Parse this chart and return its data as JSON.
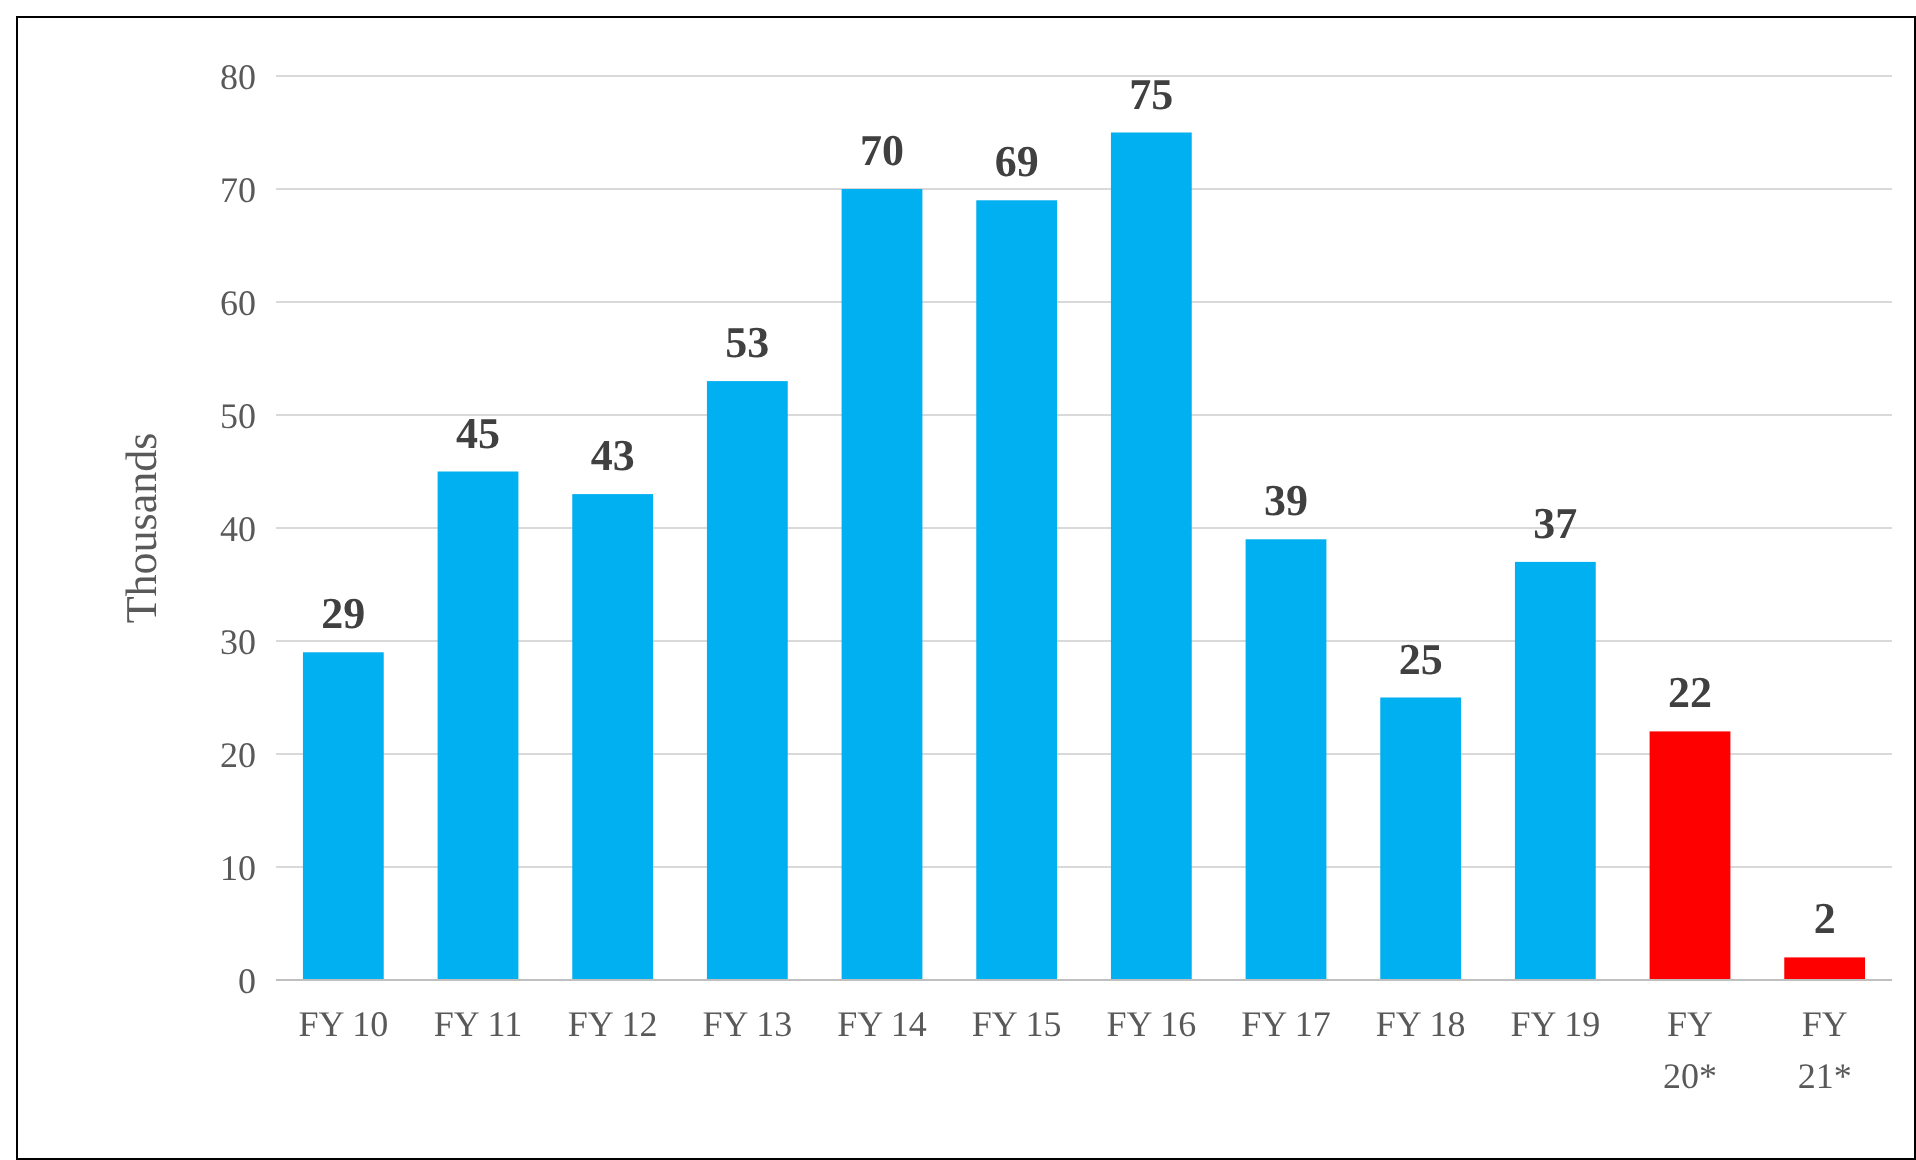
{
  "chart_data": {
    "type": "bar",
    "ylabel": "Thousands",
    "categories": [
      "FY 10",
      "FY 11",
      "FY 12",
      "FY 13",
      "FY 14",
      "FY 15",
      "FY 16",
      "FY 17",
      "FY 18",
      "FY 19",
      "FY 20*",
      "FY 21*"
    ],
    "values": [
      29,
      45,
      43,
      53,
      70,
      69,
      75,
      39,
      25,
      37,
      22,
      2
    ],
    "colors": [
      "#00b0f0",
      "#00b0f0",
      "#00b0f0",
      "#00b0f0",
      "#00b0f0",
      "#00b0f0",
      "#00b0f0",
      "#00b0f0",
      "#00b0f0",
      "#00b0f0",
      "#ff0000",
      "#ff0000"
    ],
    "ylim": [
      0,
      80
    ],
    "yticks": [
      0,
      10,
      20,
      30,
      40,
      50,
      60,
      70,
      80
    ],
    "grid": "y",
    "data_labels": true
  }
}
